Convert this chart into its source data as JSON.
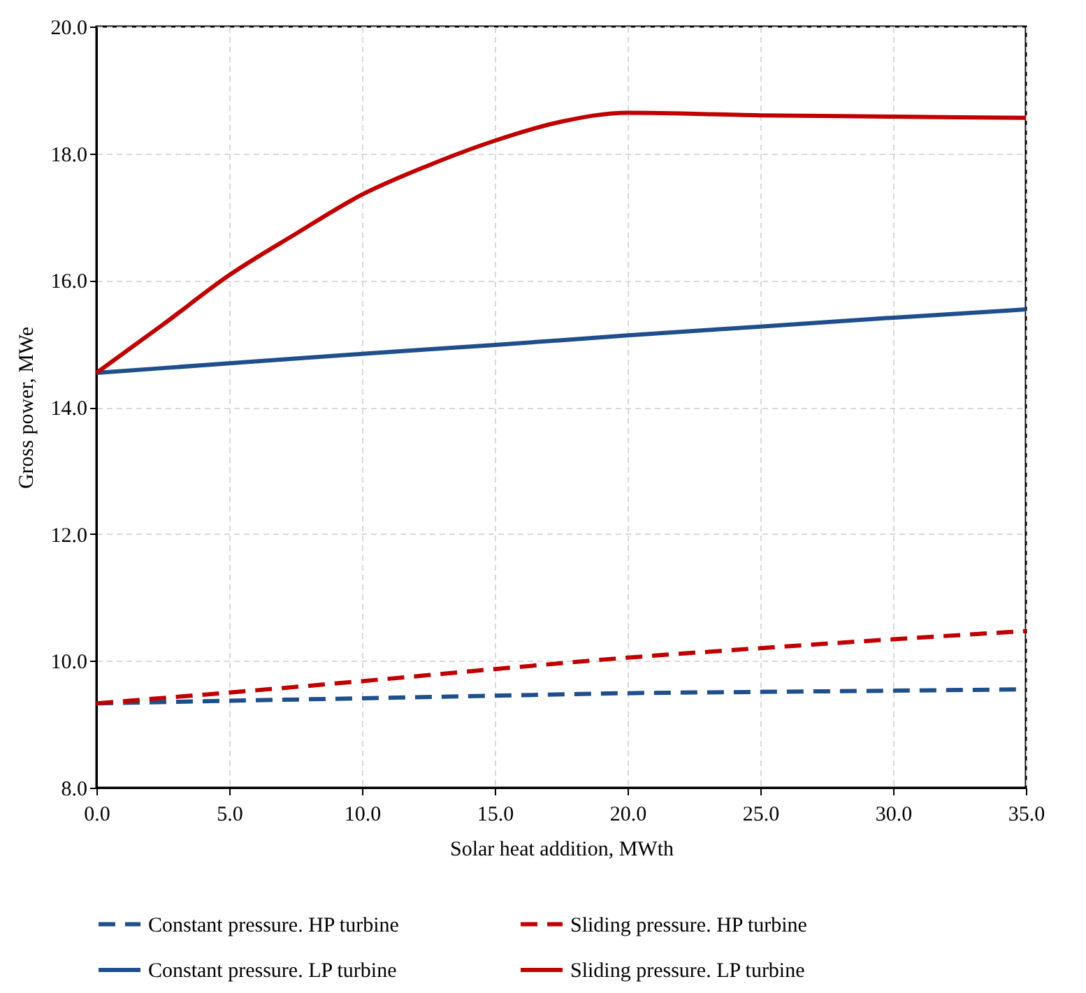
{
  "chart_data": {
    "type": "line",
    "xlabel": "Solar heat addition, MWth",
    "ylabel": "Gross power, MWe",
    "x": [
      0,
      5,
      10,
      15,
      20,
      25,
      30,
      35
    ],
    "xlim": [
      0,
      35
    ],
    "ylim": [
      8,
      20
    ],
    "xticks": [
      {
        "value": 0,
        "label": "0.0"
      },
      {
        "value": 5,
        "label": "5.0"
      },
      {
        "value": 10,
        "label": "10.0"
      },
      {
        "value": 15,
        "label": "15.0"
      },
      {
        "value": 20,
        "label": "20.0"
      },
      {
        "value": 25,
        "label": "25.0"
      },
      {
        "value": 30,
        "label": "30.0"
      },
      {
        "value": 35,
        "label": "35.0"
      }
    ],
    "yticks": [
      {
        "value": 8,
        "label": "8.0"
      },
      {
        "value": 10,
        "label": "10.0"
      },
      {
        "value": 12,
        "label": "12.0"
      },
      {
        "value": 14,
        "label": "14.0"
      },
      {
        "value": 16,
        "label": "16.0"
      },
      {
        "value": 18,
        "label": "18.0"
      },
      {
        "value": 20,
        "label": "20.0"
      }
    ],
    "grid": true,
    "legend": "bottom",
    "marker": "none",
    "series": [
      {
        "name": "Constant pressure. HP turbine",
        "color": "#1f4e8c",
        "line_style": "dashed",
        "values": [
          9.33,
          9.37,
          9.41,
          9.45,
          9.49,
          9.51,
          9.53,
          9.55
        ]
      },
      {
        "name": "Sliding pressure. HP turbine",
        "color": "#c00000",
        "line_style": "dashed",
        "values": [
          9.33,
          9.5,
          9.68,
          9.87,
          10.05,
          10.2,
          10.34,
          10.47
        ]
      },
      {
        "name": "Constant pressure. LP turbine",
        "color": "#1f4e8c",
        "line_style": "solid",
        "values": [
          14.54,
          14.69,
          14.84,
          14.98,
          15.13,
          15.27,
          15.41,
          15.54
        ]
      },
      {
        "name": "Sliding pressure. LP turbine",
        "color": "#c00000",
        "line_style": "solid",
        "x": [
          0,
          2.5,
          5,
          7.5,
          10,
          12.5,
          15,
          17.5,
          20,
          25,
          30,
          35
        ],
        "values": [
          14.54,
          15.3,
          16.08,
          16.73,
          17.35,
          17.81,
          18.2,
          18.5,
          18.64,
          18.6,
          18.58,
          18.56
        ]
      }
    ]
  }
}
